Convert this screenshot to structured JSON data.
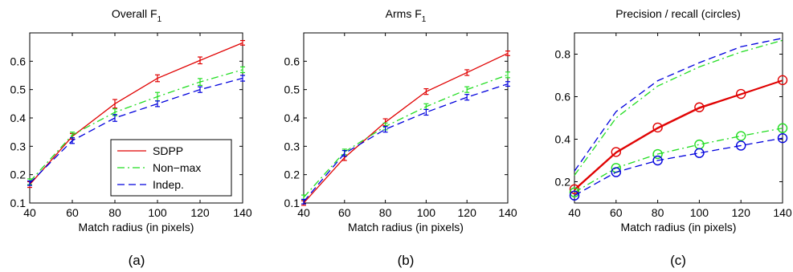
{
  "colors": {
    "SDPP": "#e00000",
    "Non-max": "#22dd22",
    "Indep.": "#0000dd"
  },
  "chart_data": [
    {
      "type": "line",
      "title": "Overall F",
      "title_subscript": "1",
      "caption": "(a)",
      "xlabel": "Match radius (in pixels)",
      "ylabel": "",
      "x": [
        40,
        60,
        80,
        100,
        120,
        140
      ],
      "xlim": [
        40,
        140
      ],
      "ylim": [
        0.1,
        0.7
      ],
      "xticks": [
        40,
        60,
        80,
        100,
        120,
        140
      ],
      "yticks": [
        0.1,
        0.2,
        0.3,
        0.4,
        0.5,
        0.6
      ],
      "ytick_labels": [
        "0.1",
        "0.2",
        "0.3",
        "0.4",
        "0.5",
        "0.6"
      ],
      "error_bars": true,
      "legend": {
        "position": "bottom-right",
        "entries": [
          "SDPP",
          "Non−max",
          "Indep."
        ]
      },
      "series": [
        {
          "name": "SDPP",
          "style": "solid",
          "values": [
            0.165,
            0.335,
            0.45,
            0.54,
            0.603,
            0.665
          ],
          "errors": [
            0.01,
            0.01,
            0.015,
            0.012,
            0.012,
            0.008
          ]
        },
        {
          "name": "Non−max",
          "style": "dashdot",
          "values": [
            0.175,
            0.34,
            0.42,
            0.475,
            0.527,
            0.57
          ],
          "errors": [
            0.01,
            0.01,
            0.012,
            0.015,
            0.012,
            0.01
          ]
        },
        {
          "name": "Indep.",
          "style": "dashed",
          "values": [
            0.17,
            0.32,
            0.4,
            0.45,
            0.5,
            0.54
          ],
          "errors": [
            0.008,
            0.01,
            0.012,
            0.01,
            0.01,
            0.01
          ]
        }
      ]
    },
    {
      "type": "line",
      "title": "Arms F",
      "title_subscript": "1",
      "caption": "(b)",
      "xlabel": "Match radius (in pixels)",
      "ylabel": "",
      "x": [
        40,
        60,
        80,
        100,
        120,
        140
      ],
      "xlim": [
        40,
        140
      ],
      "ylim": [
        0.1,
        0.7
      ],
      "xticks": [
        40,
        60,
        80,
        100,
        120,
        140
      ],
      "yticks": [
        0.1,
        0.2,
        0.3,
        0.4,
        0.5,
        0.6
      ],
      "ytick_labels": [
        "0.1",
        "0.2",
        "0.3",
        "0.4",
        "0.5",
        "0.6"
      ],
      "error_bars": true,
      "series": [
        {
          "name": "SDPP",
          "style": "solid",
          "values": [
            0.1,
            0.26,
            0.385,
            0.493,
            0.56,
            0.628
          ],
          "errors": [
            0.008,
            0.01,
            0.012,
            0.01,
            0.01,
            0.008
          ]
        },
        {
          "name": "Non−max",
          "style": "dashdot",
          "values": [
            0.12,
            0.28,
            0.37,
            0.44,
            0.5,
            0.552
          ],
          "errors": [
            0.008,
            0.01,
            0.012,
            0.01,
            0.01,
            0.01
          ]
        },
        {
          "name": "Indep.",
          "style": "dashed",
          "values": [
            0.105,
            0.275,
            0.36,
            0.42,
            0.473,
            0.52
          ],
          "errors": [
            0.008,
            0.01,
            0.01,
            0.01,
            0.01,
            0.008
          ]
        }
      ]
    },
    {
      "type": "line",
      "title": "Precision / recall (circles)",
      "caption": "(c)",
      "xlabel": "Match radius (in pixels)",
      "ylabel": "",
      "x": [
        40,
        60,
        80,
        100,
        120,
        140
      ],
      "xlim": [
        40,
        140
      ],
      "ylim": [
        0.1,
        0.9
      ],
      "xticks": [
        40,
        60,
        80,
        100,
        120,
        140
      ],
      "yticks": [
        0.2,
        0.4,
        0.6,
        0.8
      ],
      "ytick_labels": [
        "0.2",
        "0.4",
        "0.6",
        "0.8"
      ],
      "error_bars": false,
      "series": [
        {
          "name": "SDPP",
          "style": "solid",
          "markers": false,
          "values": [
            0.16,
            0.335,
            0.45,
            0.545,
            0.61,
            0.675
          ]
        },
        {
          "name": "SDPP",
          "style": "solid",
          "markers": true,
          "values": [
            0.165,
            0.34,
            0.455,
            0.55,
            0.613,
            0.678
          ]
        },
        {
          "name": "Non−max",
          "style": "dashdot",
          "markers": false,
          "values": [
            0.23,
            0.5,
            0.65,
            0.74,
            0.81,
            0.865
          ]
        },
        {
          "name": "Non−max",
          "style": "dashdot",
          "markers": true,
          "values": [
            0.15,
            0.265,
            0.33,
            0.375,
            0.415,
            0.452
          ]
        },
        {
          "name": "Indep.",
          "style": "dashed",
          "markers": false,
          "values": [
            0.25,
            0.53,
            0.675,
            0.76,
            0.835,
            0.875
          ]
        },
        {
          "name": "Indep.",
          "style": "dashed",
          "markers": true,
          "values": [
            0.135,
            0.245,
            0.3,
            0.335,
            0.37,
            0.405
          ]
        }
      ]
    }
  ]
}
